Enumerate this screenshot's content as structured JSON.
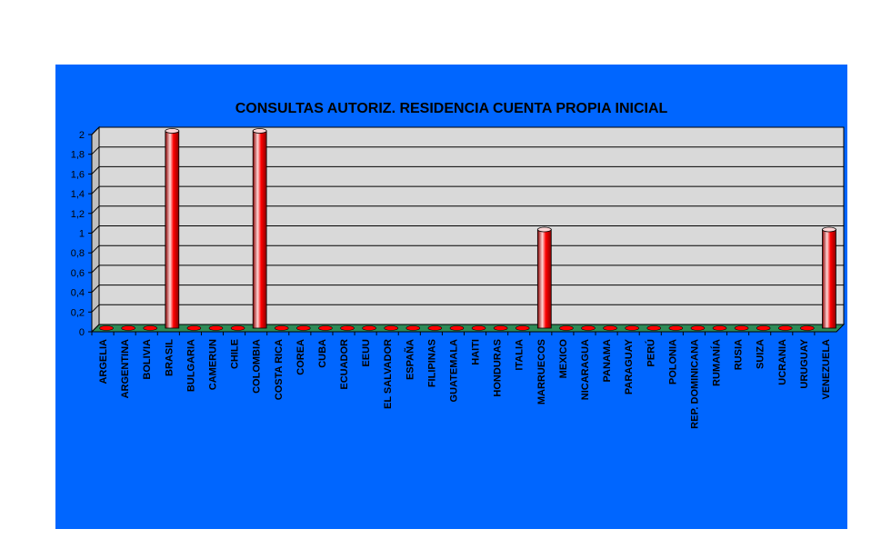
{
  "chart_data": {
    "type": "bar",
    "title": "CONSULTAS AUTORIZ. RESIDENCIA CUENTA PROPIA INICIAL",
    "xlabel": "",
    "ylabel": "",
    "ylim": [
      0,
      2
    ],
    "yticks": [
      "0",
      "0,2",
      "0,4",
      "0,6",
      "0,8",
      "1",
      "1,2",
      "1,4",
      "1,6",
      "1,8",
      "2"
    ],
    "grid": true,
    "legend": "none",
    "categories": [
      "ARGELIA",
      "ARGENTINA",
      "BOLIVIA",
      "BRASIL",
      "BULGARIA",
      "CAMERUN",
      "CHILE",
      "COLOMBIA",
      "COSTA RICA",
      "COREA",
      "CUBA",
      "ECUADOR",
      "EEUU",
      "EL SALVADOR",
      "ESPAÑA",
      "FILIPINAS",
      "GUATEMALA",
      "HAITI",
      "HONDURAS",
      "ITALIA",
      "MARRUECOS",
      "MEXICO",
      "NICARAGUA",
      "PANAMA",
      "PARAGUAY",
      "PERÚ",
      "POLONIA",
      "REP. DOMINICANA",
      "RUMANÍA",
      "RUSIA",
      "SUIZA",
      "UCRANIA",
      "URUGUAY",
      "VENEZUELA"
    ],
    "values": [
      0,
      0,
      0,
      2,
      0,
      0,
      0,
      2,
      0,
      0,
      0,
      0,
      0,
      0,
      0,
      0,
      0,
      0,
      0,
      0,
      1,
      0,
      0,
      0,
      0,
      0,
      0,
      0,
      0,
      0,
      0,
      0,
      0,
      1
    ],
    "colors": {
      "panel": "#0066ff",
      "plot_wall": "#d9d9d9",
      "bar": "#ff0000",
      "bar_highlight": "#ffd5d5",
      "bar_shadow": "#8a0000",
      "floor": "#2e8b57"
    }
  }
}
